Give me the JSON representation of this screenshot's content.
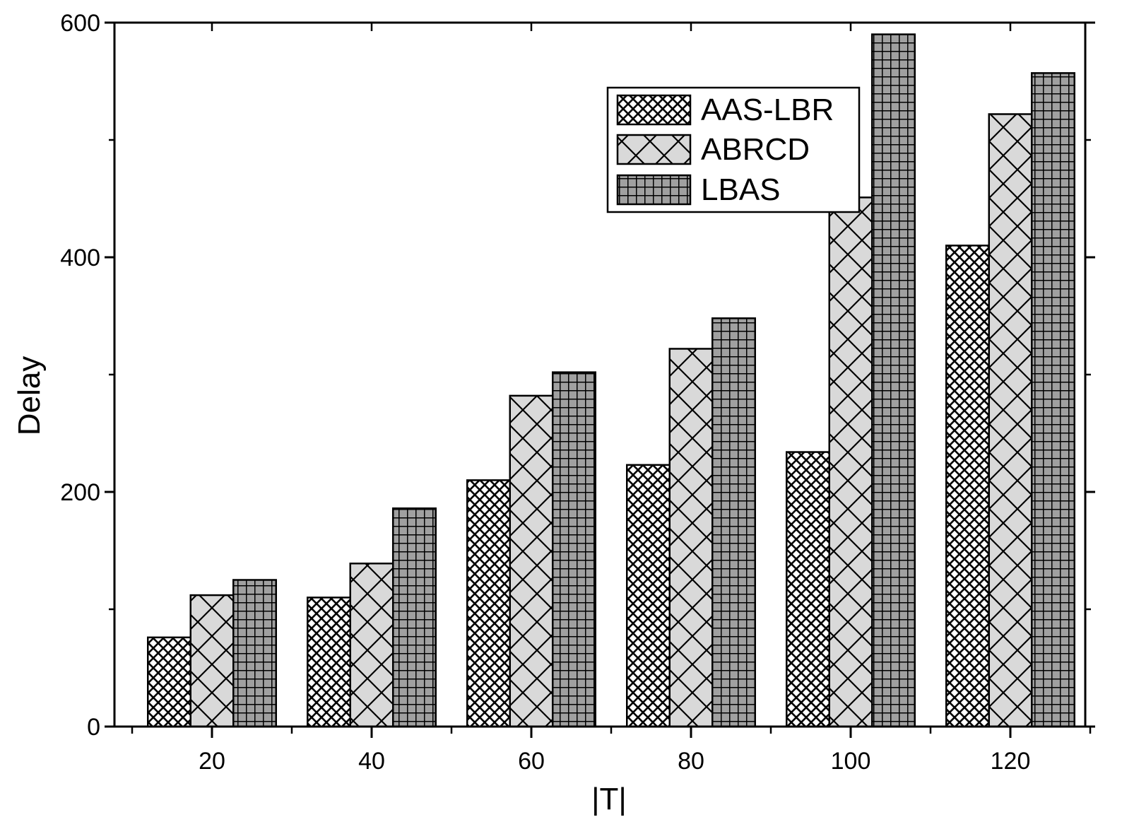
{
  "chart_data": {
    "type": "bar",
    "xlabel": "|T|",
    "ylabel": "Delay",
    "categories": [
      "20",
      "40",
      "60",
      "80",
      "100",
      "120"
    ],
    "series": [
      {
        "name": "AAS-LBR",
        "values": [
          76,
          110,
          210,
          223,
          234,
          410
        ],
        "color": "#ffffff",
        "pattern": "fine-crosshatch"
      },
      {
        "name": "ABRCD",
        "values": [
          112,
          139,
          282,
          322,
          451,
          522
        ],
        "color": "#d9d9d9",
        "pattern": "diagonal-crosshatch"
      },
      {
        "name": "LBAS",
        "values": [
          125,
          186,
          302,
          348,
          590,
          557
        ],
        "color": "#a0a0a0",
        "pattern": "grid"
      }
    ],
    "ylim": [
      0,
      600
    ],
    "y_major_ticks": [
      0,
      200,
      400,
      600
    ],
    "y_minor_ticks": [
      100,
      300,
      500
    ],
    "grid": false,
    "legend_position": "top-right"
  }
}
